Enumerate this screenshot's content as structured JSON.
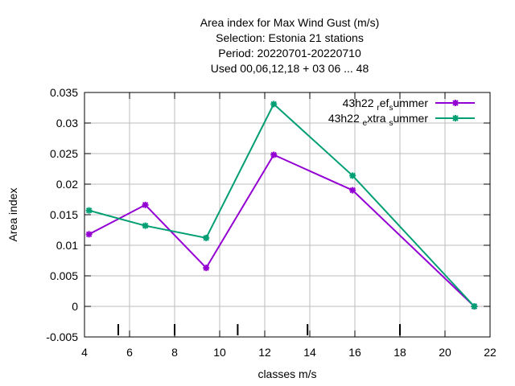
{
  "chart_data": {
    "type": "line",
    "title_lines": [
      "Area index  for Max Wind Gust (m/s)",
      "Selection: Estonia      21 stations",
      "Period: 20220701-20220710",
      "Used  00,06,12,18  + 03 06 ... 48"
    ],
    "xlabel": "classes m/s",
    "ylabel": "Area index",
    "xlim": [
      4,
      22
    ],
    "ylim": [
      -0.005,
      0.035
    ],
    "xticks": [
      "4",
      "6",
      "8",
      "10",
      "12",
      "14",
      "16",
      "18",
      "20",
      "22"
    ],
    "yticks": [
      "-0.005",
      "0",
      "0.005",
      "0.01",
      "0.015",
      "0.02",
      "0.025",
      "0.03",
      "0.035"
    ],
    "class_markers_x": [
      5.5,
      8.0,
      10.8,
      13.9,
      18.0
    ],
    "series": [
      {
        "name": "43h22 ref summer",
        "label_parts": {
          "main": "43h22 ",
          "sub1": "r",
          "mid": "ef",
          "sub2": "s",
          "tail": "ummer"
        },
        "color": "#9400d3",
        "x": [
          4.2,
          6.7,
          9.4,
          12.4,
          15.9,
          21.3
        ],
        "y": [
          0.0118,
          0.0166,
          0.0063,
          0.0248,
          0.019,
          0.0
        ]
      },
      {
        "name": "43h22 extra summer",
        "label_parts": {
          "main": "43h22 ",
          "sub1": "e",
          "mid": "xtra ",
          "sub2": "s",
          "tail": "ummer"
        },
        "color": "#009e73",
        "x": [
          4.2,
          6.7,
          9.4,
          12.4,
          15.9,
          21.3
        ],
        "y": [
          0.0157,
          0.0132,
          0.0112,
          0.0331,
          0.0214,
          0.0
        ]
      }
    ]
  }
}
